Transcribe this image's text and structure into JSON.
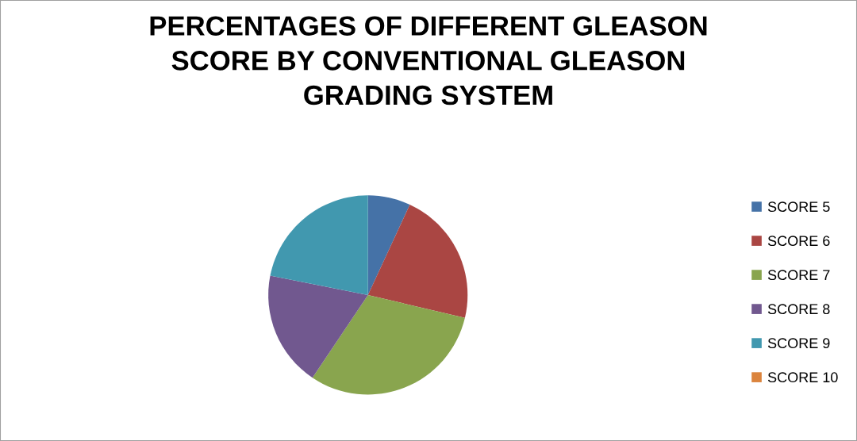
{
  "chart_data": {
    "type": "pie",
    "title": "PERCENTAGES OF DIFFERENT GLEASON\nSCORE BY CONVENTIONAL GLEASON\nGRADING SYSTEM",
    "categories": [
      "SCORE 5",
      "SCORE 6",
      "SCORE 7",
      "SCORE 8",
      "SCORE 9",
      "SCORE 10"
    ],
    "values": [
      6.9,
      21.8,
      30.7,
      18.7,
      21.9,
      0
    ],
    "colors": [
      "#4572a7",
      "#aa4643",
      "#89a54e",
      "#71588f",
      "#4198af",
      "#db843d"
    ],
    "legend": "right"
  }
}
